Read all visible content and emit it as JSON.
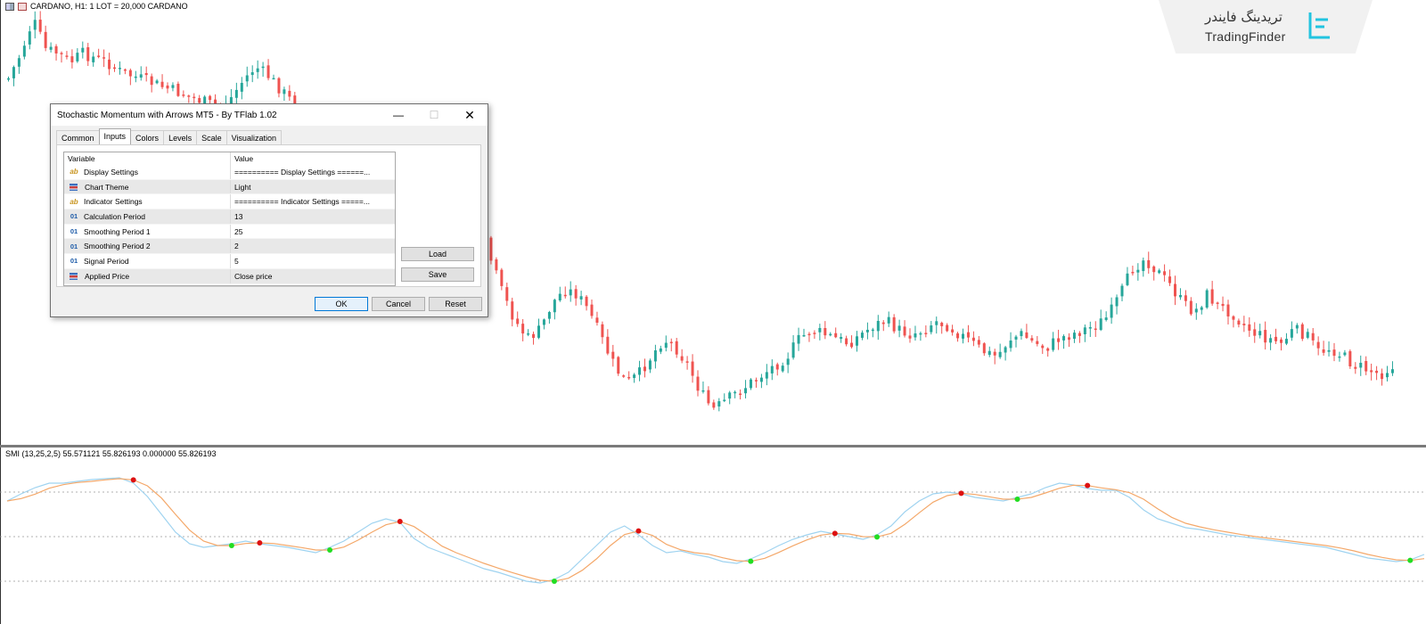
{
  "chart": {
    "header": "CARDANO, H1:  1 LOT = 20,000 CARDANO",
    "indicator_header": "SMI (13,25,2,5) 55.571121 55.826193 0.000000 55.826193",
    "colors": {
      "bull": "#26a69a",
      "bear": "#ef5350",
      "smi_line": "#9fd3f0",
      "signal_line": "#f4a86a",
      "arrow_up": "#22dd22",
      "arrow_down": "#dd1111",
      "level": "#999999"
    },
    "price_path": [
      88,
      60,
      22,
      55,
      60,
      70,
      60,
      65,
      70,
      80,
      85,
      90,
      95,
      100,
      105,
      110,
      115,
      120,
      110,
      90,
      75,
      85,
      100,
      115,
      130,
      155,
      170,
      175,
      182,
      185,
      182,
      188,
      190,
      185,
      183,
      186,
      195,
      185,
      240,
      290,
      330,
      360,
      380,
      370,
      340,
      325,
      330,
      350,
      380,
      410,
      430,
      420,
      400,
      380,
      390,
      410,
      440,
      460,
      450,
      440,
      430,
      420,
      410,
      400,
      380,
      370,
      375,
      380,
      385,
      375,
      365,
      360,
      370,
      375,
      370,
      360,
      365,
      375,
      385,
      395,
      400,
      380,
      375,
      385,
      390,
      380,
      375,
      370,
      365,
      355,
      330,
      300,
      290,
      305,
      320,
      340,
      350,
      330,
      345,
      350,
      365,
      375,
      380,
      385,
      370,
      375,
      395,
      390,
      400,
      410,
      415,
      420,
      410
    ],
    "smi_path": [
      60,
      52,
      45,
      40,
      40,
      38,
      36,
      35,
      34,
      40,
      55,
      75,
      95,
      108,
      112,
      110,
      108,
      105,
      108,
      110,
      112,
      115,
      118,
      112,
      105,
      95,
      85,
      80,
      84,
      102,
      112,
      118,
      124,
      130,
      136,
      140,
      145,
      150,
      152,
      148,
      140,
      125,
      110,
      95,
      88,
      98,
      110,
      118,
      116,
      120,
      123,
      128,
      130,
      125,
      118,
      110,
      103,
      98,
      94,
      97,
      100,
      103,
      98,
      88,
      72,
      60,
      52,
      50,
      52,
      56,
      58,
      60,
      56,
      52,
      45,
      40,
      42,
      46,
      48,
      48,
      56,
      70,
      80,
      85,
      90,
      92,
      95,
      98,
      100,
      102,
      104,
      106,
      108,
      110,
      112,
      116,
      120,
      124,
      126,
      128,
      126,
      120
    ]
  },
  "dialog": {
    "title": "Stochastic Momentum with Arrows MT5 - By TFlab 1.02",
    "tabs": [
      "Common",
      "Inputs",
      "Colors",
      "Levels",
      "Scale",
      "Visualization"
    ],
    "active_tab": "Inputs",
    "columns": [
      "Variable",
      "Value"
    ],
    "rows": [
      {
        "icon": "ab",
        "variable": "Display Settings",
        "value": "========== Display Settings ======..."
      },
      {
        "icon": "list",
        "variable": "Chart Theme",
        "value": "Light"
      },
      {
        "icon": "ab",
        "variable": "Indicator Settings",
        "value": "========== Indicator Settings =====..."
      },
      {
        "icon": "01",
        "variable": "Calculation Period",
        "value": "13"
      },
      {
        "icon": "01",
        "variable": "Smoothing Period 1",
        "value": "25"
      },
      {
        "icon": "01",
        "variable": "Smoothing Period 2",
        "value": "2"
      },
      {
        "icon": "01",
        "variable": "Signal Period",
        "value": "5"
      },
      {
        "icon": "list",
        "variable": "Applied Price",
        "value": "Close price"
      }
    ],
    "buttons": {
      "load": "Load",
      "save": "Save",
      "ok": "OK",
      "cancel": "Cancel",
      "reset": "Reset"
    }
  },
  "logo": {
    "fa": "تریدینگ فایندر",
    "en": "TradingFinder"
  }
}
